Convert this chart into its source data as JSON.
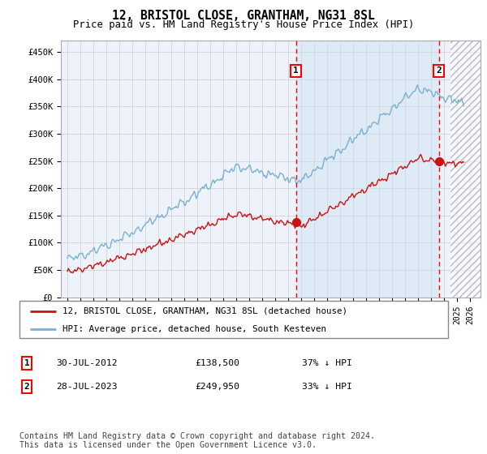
{
  "title": "12, BRISTOL CLOSE, GRANTHAM, NG31 8SL",
  "subtitle": "Price paid vs. HM Land Registry's House Price Index (HPI)",
  "ylabel_ticks": [
    "£0",
    "£50K",
    "£100K",
    "£150K",
    "£200K",
    "£250K",
    "£300K",
    "£350K",
    "£400K",
    "£450K"
  ],
  "ytick_values": [
    0,
    50000,
    100000,
    150000,
    200000,
    250000,
    300000,
    350000,
    400000,
    450000
  ],
  "ylim": [
    0,
    470000
  ],
  "xlim_start": 1994.5,
  "xlim_end": 2026.8,
  "hpi_color": "#7ab0d4",
  "hpi_fill_color": "#d8e8f5",
  "price_color": "#cc1111",
  "background_color": "#eef3fb",
  "grid_color": "#cccccc",
  "transaction1_date": 2012.58,
  "transaction1_price": 138500,
  "transaction2_date": 2023.58,
  "transaction2_price": 249950,
  "legend_line1": "12, BRISTOL CLOSE, GRANTHAM, NG31 8SL (detached house)",
  "legend_line2": "HPI: Average price, detached house, South Kesteven",
  "footnote": "Contains HM Land Registry data © Crown copyright and database right 2024.\nThis data is licensed under the Open Government Licence v3.0."
}
